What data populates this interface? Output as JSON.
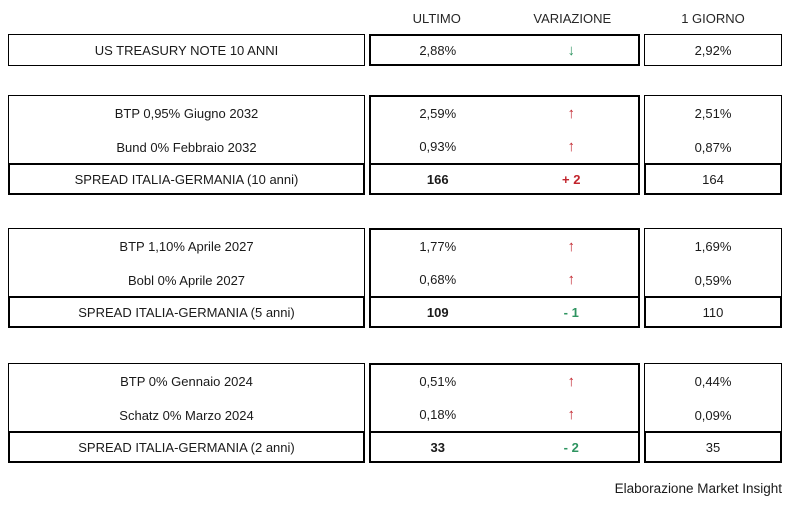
{
  "header": {
    "columns": [
      "ULTIMO",
      "VARIAZIONE",
      "1 GIORNO"
    ]
  },
  "sections": [
    {
      "name": "us-treasury",
      "bonds": [
        {
          "label": "US TREASURY NOTE 10 ANNI",
          "ultimo": "2,88%",
          "trend": "down",
          "giorno": "2,92%"
        }
      ]
    },
    {
      "name": "italy-germany-10y",
      "bonds": [
        {
          "label": "BTP 0,95% Giugno 2032",
          "ultimo": "2,59%",
          "trend": "up",
          "giorno": "2,51%"
        },
        {
          "label": "Bund 0% Febbraio 2032",
          "ultimo": "0,93%",
          "trend": "up",
          "giorno": "0,87%"
        }
      ],
      "spread": {
        "label": "SPREAD ITALIA-GERMANIA (10 anni)",
        "ultimo": "166",
        "change": "+ 2",
        "trend": "up",
        "giorno": "164"
      }
    },
    {
      "name": "italy-germany-5y",
      "bonds": [
        {
          "label": "BTP 1,10% Aprile 2027",
          "ultimo": "1,77%",
          "trend": "up",
          "giorno": "1,69%"
        },
        {
          "label": "Bobl 0% Aprile 2027",
          "ultimo": "0,68%",
          "trend": "up",
          "giorno": "0,59%"
        }
      ],
      "spread": {
        "label": "SPREAD ITALIA-GERMANIA (5 anni)",
        "ultimo": "109",
        "change": "- 1",
        "trend": "down",
        "giorno": "110"
      }
    },
    {
      "name": "italy-germany-2y",
      "bonds": [
        {
          "label": "BTP 0% Gennaio 2024",
          "ultimo": "0,51%",
          "trend": "up",
          "giorno": "0,44%"
        },
        {
          "label": "Schatz 0% Marzo 2024",
          "ultimo": "0,18%",
          "trend": "up",
          "giorno": "0,09%"
        }
      ],
      "spread": {
        "label": "SPREAD ITALIA-GERMANIA (2 anni)",
        "ultimo": "33",
        "change": "- 2",
        "trend": "down",
        "giorno": "35"
      }
    }
  ],
  "icons": {
    "up_arrow": "↑",
    "down_arrow": "↓"
  },
  "colors": {
    "up_red": "#c2242c",
    "down_green": "#2e9460",
    "border": "#000000",
    "text": "#1a1a1a"
  },
  "footer": {
    "credit": "Elaborazione Market Insight"
  },
  "chart_data": {
    "type": "table",
    "columns": [
      "",
      "ULTIMO",
      "VARIAZIONE",
      "1 GIORNO"
    ],
    "rows": [
      [
        "US TREASURY NOTE 10 ANNI",
        "2,88%",
        "↓",
        "2,92%"
      ],
      [
        "BTP 0,95% Giugno 2032",
        "2,59%",
        "↑",
        "2,51%"
      ],
      [
        "Bund 0% Febbraio 2032",
        "0,93%",
        "↑",
        "0,87%"
      ],
      [
        "SPREAD ITALIA-GERMANIA (10 anni)",
        "166",
        "+ 2",
        "164"
      ],
      [
        "BTP 1,10% Aprile 2027",
        "1,77%",
        "↑",
        "1,69%"
      ],
      [
        "Bobl 0% Aprile 2027",
        "0,68%",
        "↑",
        "0,59%"
      ],
      [
        "SPREAD ITALIA-GERMANIA (5 anni)",
        "109",
        "- 1",
        "110"
      ],
      [
        "BTP 0% Gennaio 2024",
        "0,51%",
        "↑",
        "0,44%"
      ],
      [
        "Schatz 0% Marzo 2024",
        "0,18%",
        "↑",
        "0,09%"
      ],
      [
        "SPREAD ITALIA-GERMANIA (2 anni)",
        "33",
        "- 2",
        "35"
      ]
    ],
    "notes": "Bond yields table; VARIAZIONE arrows: red up = rise, green down = fall; spread changes: + red, - green"
  }
}
